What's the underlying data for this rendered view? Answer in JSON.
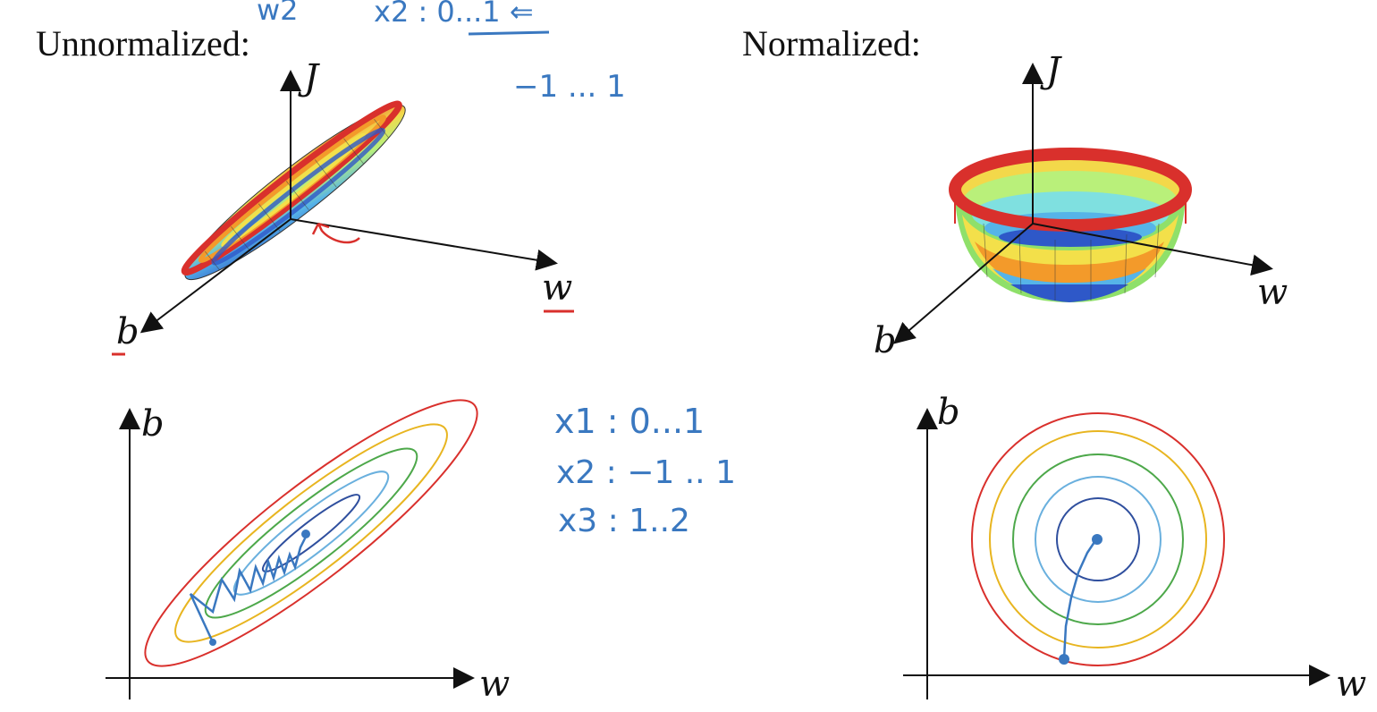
{
  "titles": {
    "left": "Unnormalized:",
    "right": "Normalized:"
  },
  "axis_labels": {
    "J_left": "J",
    "w_left": "w",
    "b_left": "b",
    "J_right": "J",
    "w_right": "w",
    "b_right": "b",
    "contour_left_b": "b",
    "contour_left_w": "w",
    "contour_right_b": "b",
    "contour_right_w": "w"
  },
  "annotations": {
    "top_w2": "w2",
    "top_x2": "x2 : 0...1 ⇐",
    "top_range": "−1 ... 1",
    "x1_range": "x1 : 0...1",
    "x2_range": "x2 : −1 .. 1",
    "x3_range": "x3 : 1..2"
  },
  "colors": {
    "contour_levels": [
      "#2f4f9e",
      "#6ab0de",
      "#4da84a",
      "#e8b520",
      "#d9302c"
    ],
    "ink": "#3a78c0",
    "red_ink": "#d9302c",
    "axis": "#111111"
  }
}
